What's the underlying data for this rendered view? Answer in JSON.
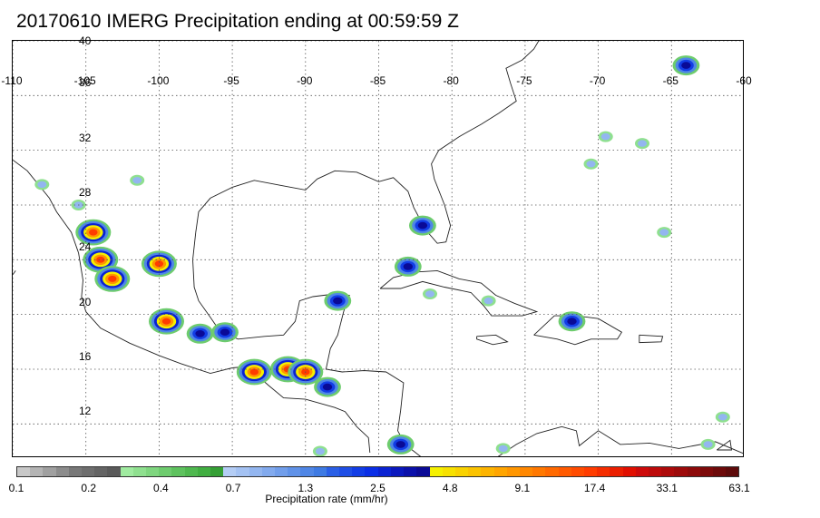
{
  "title": "20170610 IMERG Precipitation ending at 00:59:59 Z",
  "map": {
    "lon_labels": [
      "-110",
      "-105",
      "-100",
      "-95",
      "-90",
      "-85",
      "-80",
      "-75",
      "-70",
      "-65",
      "-60"
    ],
    "lat_labels": [
      "40",
      "36",
      "32",
      "28",
      "24",
      "20",
      "16",
      "12"
    ],
    "lon_range": [
      -110,
      -60
    ],
    "lat_range": [
      9.5,
      40
    ],
    "gridlines": "dotted"
  },
  "colorbar": {
    "title": "Precipitation rate (mm/hr)",
    "tick_labels": [
      "0.1",
      "0.2",
      "0.4",
      "0.7",
      "1.3",
      "2.5",
      "4.8",
      "9.1",
      "17.4",
      "33.1",
      "63.1"
    ],
    "colors": [
      "#c8c8c8",
      "#b4b4b4",
      "#a0a0a0",
      "#8c8c8c",
      "#787878",
      "#6e6e6e",
      "#646464",
      "#5a5a5a",
      "#a0eba0",
      "#8fe08f",
      "#7fd67f",
      "#6ecc6e",
      "#5ec25e",
      "#4fb84f",
      "#41ae41",
      "#359f35",
      "#b4cdf5",
      "#a4c2f3",
      "#93b6f0",
      "#82aaee",
      "#719eeb",
      "#6092e8",
      "#4f86e6",
      "#3e7ae3",
      "#2a5fe6",
      "#1e4ee6",
      "#123de6",
      "#0a2ee6",
      "#0a22d2",
      "#0a18be",
      "#0a10aa",
      "#0a0a96",
      "#f5f000",
      "#f7e100",
      "#f9d200",
      "#fbc300",
      "#fdb400",
      "#ffa500",
      "#ff9600",
      "#ff8700",
      "#ff7800",
      "#ff6900",
      "#ff5a00",
      "#ff4b00",
      "#ff3c00",
      "#f52d00",
      "#eb1e00",
      "#e10f00",
      "#cd0a0a",
      "#bd0a0a",
      "#ad0a0a",
      "#9d0a0a",
      "#8d0a0a",
      "#7d0a0a",
      "#6d0a0a",
      "#5d0a0a"
    ]
  },
  "precip_cells": [
    {
      "lon": -104.5,
      "lat": 26.0,
      "level": "heavy"
    },
    {
      "lon": -104.0,
      "lat": 24.0,
      "level": "heavy"
    },
    {
      "lon": -103.2,
      "lat": 22.6,
      "level": "heavy"
    },
    {
      "lon": -100.0,
      "lat": 23.7,
      "level": "heavy"
    },
    {
      "lon": -99.5,
      "lat": 19.5,
      "level": "heavy"
    },
    {
      "lon": -97.2,
      "lat": 18.6,
      "level": "moderate"
    },
    {
      "lon": -95.5,
      "lat": 18.7,
      "level": "moderate"
    },
    {
      "lon": -93.5,
      "lat": 15.8,
      "level": "heavy"
    },
    {
      "lon": -91.2,
      "lat": 16.0,
      "level": "heavy"
    },
    {
      "lon": -90.0,
      "lat": 15.8,
      "level": "heavy"
    },
    {
      "lon": -88.5,
      "lat": 14.7,
      "level": "moderate"
    },
    {
      "lon": -87.8,
      "lat": 21.0,
      "level": "moderate"
    },
    {
      "lon": -82.0,
      "lat": 26.5,
      "level": "moderate"
    },
    {
      "lon": -83.0,
      "lat": 23.5,
      "level": "moderate"
    },
    {
      "lon": -83.5,
      "lat": 10.5,
      "level": "moderate"
    },
    {
      "lon": -71.8,
      "lat": 19.5,
      "level": "moderate"
    },
    {
      "lon": -64.0,
      "lat": 38.2,
      "level": "moderate"
    },
    {
      "lon": -65.5,
      "lat": 26.0,
      "level": "light"
    },
    {
      "lon": -70.5,
      "lat": 31.0,
      "level": "light"
    },
    {
      "lon": -108.0,
      "lat": 29.5,
      "level": "light"
    },
    {
      "lon": -105.5,
      "lat": 28.0,
      "level": "light"
    },
    {
      "lon": -101.5,
      "lat": 29.8,
      "level": "light"
    },
    {
      "lon": -81.5,
      "lat": 21.5,
      "level": "light"
    },
    {
      "lon": -77.5,
      "lat": 21.0,
      "level": "light"
    },
    {
      "lon": -61.5,
      "lat": 12.5,
      "level": "light"
    },
    {
      "lon": -62.5,
      "lat": 10.5,
      "level": "light"
    },
    {
      "lon": -76.5,
      "lat": 10.2,
      "level": "light"
    },
    {
      "lon": -89.0,
      "lat": 10.0,
      "level": "light"
    },
    {
      "lon": -69.5,
      "lat": 33.0,
      "level": "light"
    },
    {
      "lon": -67.0,
      "lat": 32.5,
      "level": "light"
    }
  ]
}
